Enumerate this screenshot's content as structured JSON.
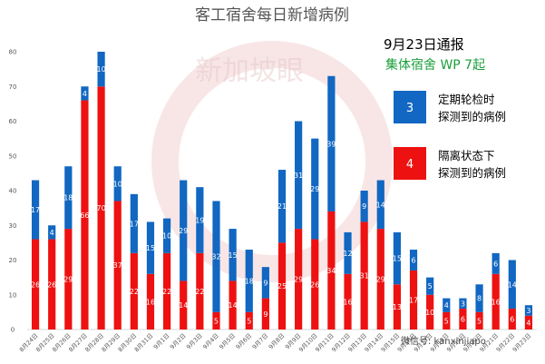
{
  "chart_data": {
    "type": "bar",
    "stacked": true,
    "title": "客工宿舍每日新增病例",
    "categories": [
      "8月24日",
      "8月25日",
      "8月26日",
      "8月27日",
      "8月28日",
      "8月29日",
      "8月30日",
      "8月31日",
      "9月1日",
      "9月2日",
      "9月3日",
      "9月4日",
      "9月5日",
      "9月6日",
      "9月7日",
      "9月8日",
      "9月9日",
      "9月10日",
      "9月11日",
      "9月12日",
      "9月13日",
      "9月14日",
      "9月15日",
      "9月16日",
      "9月17日",
      "9月18日",
      "9月19日",
      "9月20日",
      "9月21日",
      "9月22日",
      "9月23日"
    ],
    "series": [
      {
        "name": "隔离状态下 探测到的病例",
        "color": "#ee1111",
        "values": [
          26,
          26,
          29,
          66,
          70,
          37,
          22,
          16,
          22,
          14,
          22,
          5,
          14,
          5,
          9,
          25,
          29,
          26,
          34,
          16,
          31,
          29,
          13,
          17,
          10,
          5,
          6,
          5,
          16,
          6,
          4
        ]
      },
      {
        "name": "定期轮检时 探测到的病例",
        "color": "#1167c1",
        "values": [
          17,
          4,
          18,
          4,
          10,
          10,
          17,
          15,
          10,
          29,
          19,
          32,
          15,
          18,
          9,
          21,
          31,
          29,
          39,
          12,
          9,
          14,
          15,
          6,
          5,
          4,
          3,
          8,
          6,
          14,
          3
        ]
      }
    ],
    "ylim": [
      0,
      80
    ],
    "yticks": [
      0,
      10,
      20,
      30,
      40,
      50,
      60,
      70,
      80
    ],
    "grid": false,
    "legend": "right",
    "annotation_date": "9月23日通报",
    "annotation_sub": "集体宿舍 WP 7起"
  },
  "legend": {
    "blue": {
      "num": "3",
      "line1": "定期轮检时",
      "line2": "探测到的病例"
    },
    "red": {
      "num": "4",
      "line1": "隔离状态下",
      "line2": "探测到的病例"
    }
  },
  "watermark": "新加坡眼",
  "watermark2": "微信号: kanxinjiapo"
}
